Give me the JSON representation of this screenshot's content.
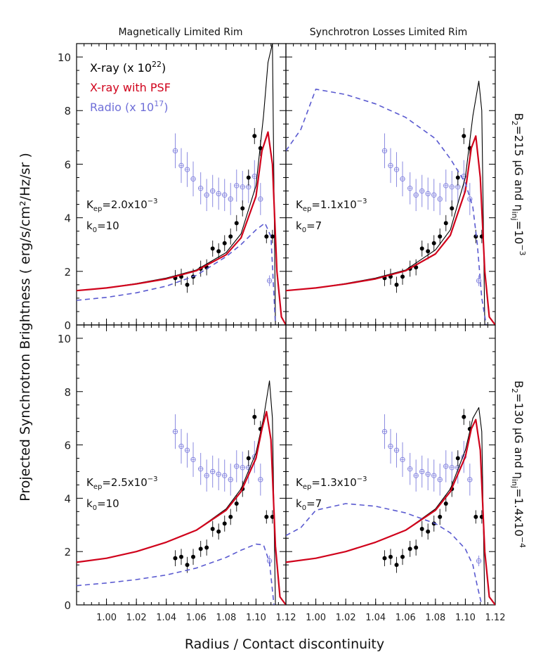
{
  "column_titles": [
    "Magnetically Limited Rim",
    "Synchrotron Losses Limited Rim"
  ],
  "row_labels": [
    {
      "main": "B",
      "sub": "2",
      "rest": "=215 μG and η",
      "sub2": "inj",
      "rest2": "=10",
      "sup": "−3"
    },
    {
      "main": "B",
      "sub": "2",
      "rest": "=130 μG and η",
      "sub2": "inj",
      "rest2": "=1.4x10",
      "sup": "−4"
    }
  ],
  "xlabel": "Radius / Contact discontinuity",
  "ylabel": "Projected Synchrotron Brightness ( erg/s/cm²/Hz/sr )",
  "legend": [
    {
      "text": "X-ray (x 10",
      "sup": "22",
      "tail": ")",
      "color": "#000000"
    },
    {
      "text": "X-ray with PSF",
      "sup": "",
      "tail": "",
      "color": "#d0021b"
    },
    {
      "text": "Radio (x 10",
      "sup": "17",
      "tail": ")",
      "color": "#6f6fd8"
    }
  ],
  "xticks": [
    "1.00",
    "1.02",
    "1.04",
    "1.06",
    "1.08",
    "1.10",
    "1.12"
  ],
  "yticks": [
    "0",
    "2",
    "4",
    "6",
    "8",
    "10"
  ],
  "colors": {
    "xray": "#000000",
    "psf": "#d0021b",
    "radio": "#5a5ad0",
    "radio_points": "#8a8ae0"
  },
  "chart_data": {
    "type": "line",
    "xlim": [
      0.98,
      1.12
    ],
    "ylim": [
      0,
      10.5
    ],
    "grid": false,
    "panels": [
      {
        "row": 1,
        "col": 1,
        "annotation": {
          "k_ep": "K",
          "k_ep_sub": "ep",
          "k_ep_val": "=2.0x10",
          "k_ep_sup": "−3",
          "k0": "k",
          "k0_sub": "0",
          "k0_val": "=10"
        },
        "series": [
          {
            "name": "X-ray (x 10^22)",
            "x": [
              0.98,
              1.0,
              1.02,
              1.04,
              1.06,
              1.08,
              1.09,
              1.1,
              1.105,
              1.108,
              1.111,
              1.113
            ],
            "y": [
              1.28,
              1.38,
              1.55,
              1.75,
              2.05,
              2.7,
              3.4,
              5.2,
              7.8,
              9.8,
              10.5,
              0.0
            ]
          },
          {
            "name": "X-ray with PSF",
            "x": [
              0.98,
              1.0,
              1.02,
              1.04,
              1.06,
              1.08,
              1.09,
              1.1,
              1.104,
              1.108,
              1.111,
              1.114,
              1.117,
              1.12
            ],
            "y": [
              1.28,
              1.38,
              1.53,
              1.72,
              2.02,
              2.62,
              3.25,
              4.8,
              6.5,
              7.2,
              6.0,
              2.0,
              0.3,
              0.0
            ]
          },
          {
            "name": "Radio (x 10^17)",
            "x": [
              0.98,
              1.0,
              1.02,
              1.04,
              1.06,
              1.08,
              1.09,
              1.1,
              1.106,
              1.11,
              1.113
            ],
            "y": [
              0.92,
              1.03,
              1.2,
              1.45,
              1.85,
              2.55,
              3.0,
              3.55,
              3.8,
              3.3,
              0.0
            ]
          }
        ]
      },
      {
        "row": 1,
        "col": 2,
        "annotation": {
          "k_ep": "K",
          "k_ep_sub": "ep",
          "k_ep_val": "=1.1x10",
          "k_ep_sup": "−3",
          "k0": "k",
          "k0_sub": "0",
          "k0_val": "=7"
        },
        "series": [
          {
            "name": "X-ray (x 10^22)",
            "x": [
              0.98,
              1.0,
              1.02,
              1.04,
              1.06,
              1.08,
              1.09,
              1.1,
              1.105,
              1.109,
              1.111,
              1.113
            ],
            "y": [
              1.28,
              1.38,
              1.55,
              1.75,
              2.05,
              2.8,
              3.55,
              5.5,
              7.8,
              9.1,
              8.0,
              0.0
            ]
          },
          {
            "name": "X-ray with PSF",
            "x": [
              0.98,
              1.0,
              1.02,
              1.04,
              1.06,
              1.08,
              1.09,
              1.1,
              1.104,
              1.107,
              1.11,
              1.113,
              1.116,
              1.12
            ],
            "y": [
              1.28,
              1.38,
              1.53,
              1.72,
              2.02,
              2.65,
              3.35,
              5.0,
              6.6,
              7.05,
              5.5,
              2.0,
              0.3,
              0.0
            ]
          },
          {
            "name": "Radio (x 10^17)",
            "x": [
              0.98,
              0.99,
              1.0,
              1.02,
              1.04,
              1.06,
              1.08,
              1.09,
              1.1,
              1.105,
              1.108,
              1.111,
              1.114
            ],
            "y": [
              6.5,
              7.3,
              8.8,
              8.6,
              8.25,
              7.75,
              6.95,
              6.2,
              5.3,
              4.4,
              3.0,
              1.0,
              0.0
            ]
          }
        ]
      },
      {
        "row": 2,
        "col": 1,
        "annotation": {
          "k_ep": "K",
          "k_ep_sub": "ep",
          "k_ep_val": "=2.5x10",
          "k_ep_sup": "−3",
          "k0": "k",
          "k0_sub": "0",
          "k0_val": "=10"
        },
        "series": [
          {
            "name": "X-ray (x 10^22)",
            "x": [
              0.98,
              1.0,
              1.02,
              1.04,
              1.06,
              1.08,
              1.09,
              1.1,
              1.105,
              1.109,
              1.111,
              1.113
            ],
            "y": [
              1.6,
              1.75,
              2.0,
              2.35,
              2.8,
              3.6,
              4.35,
              5.7,
              7.0,
              8.4,
              7.0,
              0.0
            ]
          },
          {
            "name": "X-ray with PSF",
            "x": [
              0.98,
              1.0,
              1.02,
              1.04,
              1.06,
              1.08,
              1.09,
              1.1,
              1.104,
              1.107,
              1.11,
              1.113,
              1.116,
              1.12
            ],
            "y": [
              1.6,
              1.75,
              2.0,
              2.35,
              2.8,
              3.55,
              4.25,
              5.5,
              6.6,
              7.25,
              6.2,
              2.2,
              0.3,
              0.0
            ]
          },
          {
            "name": "Radio (x 10^17)",
            "x": [
              0.98,
              1.0,
              1.02,
              1.04,
              1.06,
              1.08,
              1.09,
              1.1,
              1.105,
              1.109,
              1.112
            ],
            "y": [
              0.72,
              0.82,
              0.95,
              1.12,
              1.38,
              1.78,
              2.05,
              2.28,
              2.25,
              1.6,
              0.0
            ]
          }
        ]
      },
      {
        "row": 2,
        "col": 2,
        "annotation": {
          "k_ep": "K",
          "k_ep_sub": "ep",
          "k_ep_val": "=1.3x10",
          "k_ep_sup": "−3",
          "k0": "k",
          "k0_sub": "0",
          "k0_val": "=7"
        },
        "series": [
          {
            "name": "X-ray (x 10^22)",
            "x": [
              0.98,
              1.0,
              1.02,
              1.04,
              1.06,
              1.08,
              1.09,
              1.1,
              1.105,
              1.109,
              1.111,
              1.113
            ],
            "y": [
              1.6,
              1.75,
              2.0,
              2.35,
              2.8,
              3.6,
              4.35,
              5.8,
              7.0,
              7.4,
              6.5,
              0.0
            ]
          },
          {
            "name": "X-ray with PSF",
            "x": [
              0.98,
              1.0,
              1.02,
              1.04,
              1.06,
              1.08,
              1.09,
              1.1,
              1.104,
              1.107,
              1.11,
              1.113,
              1.116,
              1.12
            ],
            "y": [
              1.6,
              1.75,
              2.0,
              2.35,
              2.8,
              3.55,
              4.25,
              5.55,
              6.6,
              6.95,
              5.8,
              2.0,
              0.3,
              0.0
            ]
          },
          {
            "name": "Radio (x 10^17)",
            "x": [
              0.98,
              0.99,
              1.0,
              1.02,
              1.04,
              1.06,
              1.08,
              1.09,
              1.1,
              1.105,
              1.108,
              1.111
            ],
            "y": [
              2.6,
              2.9,
              3.55,
              3.8,
              3.7,
              3.45,
              3.05,
              2.7,
              2.1,
              1.5,
              0.7,
              0.0
            ]
          }
        ]
      }
    ],
    "observations": {
      "xray": {
        "row1": {
          "x": [
            1.046,
            1.05,
            1.054,
            1.058,
            1.063,
            1.067,
            1.071,
            1.075,
            1.079,
            1.083,
            1.087,
            1.091,
            1.095,
            1.099,
            1.103,
            1.107,
            1.111
          ],
          "y": [
            1.75,
            1.8,
            1.5,
            1.8,
            2.1,
            2.15,
            2.85,
            2.75,
            3.05,
            3.3,
            3.8,
            4.35,
            5.5,
            7.05,
            6.6,
            3.3,
            3.3
          ],
          "err": [
            0.3,
            0.3,
            0.3,
            0.3,
            0.3,
            0.3,
            0.3,
            0.3,
            0.3,
            0.3,
            0.3,
            0.3,
            0.3,
            0.3,
            0.3,
            0.25,
            0.25
          ]
        },
        "row2": {
          "x": [
            1.046,
            1.05,
            1.054,
            1.058,
            1.063,
            1.067,
            1.071,
            1.075,
            1.079,
            1.083,
            1.087,
            1.091,
            1.095,
            1.099,
            1.103,
            1.107,
            1.111
          ],
          "y": [
            1.75,
            1.8,
            1.5,
            1.8,
            2.1,
            2.15,
            2.85,
            2.75,
            3.05,
            3.3,
            3.8,
            4.35,
            5.5,
            7.05,
            6.6,
            3.3,
            3.3
          ],
          "err": [
            0.3,
            0.3,
            0.3,
            0.3,
            0.3,
            0.3,
            0.3,
            0.3,
            0.3,
            0.3,
            0.3,
            0.3,
            0.3,
            0.3,
            0.3,
            0.25,
            0.25
          ]
        }
      },
      "radio": {
        "x": [
          1.046,
          1.05,
          1.054,
          1.058,
          1.063,
          1.067,
          1.071,
          1.075,
          1.079,
          1.083,
          1.087,
          1.091,
          1.095,
          1.099,
          1.103,
          1.109
        ],
        "y": [
          6.5,
          5.95,
          5.8,
          5.45,
          5.1,
          4.85,
          5.0,
          4.9,
          4.85,
          4.7,
          5.2,
          5.15,
          5.15,
          5.55,
          4.7,
          1.65
        ],
        "err": [
          0.65,
          0.65,
          0.65,
          0.65,
          0.6,
          0.6,
          0.6,
          0.6,
          0.6,
          0.6,
          0.6,
          0.6,
          0.6,
          0.6,
          0.6,
          0.2
        ]
      }
    }
  }
}
